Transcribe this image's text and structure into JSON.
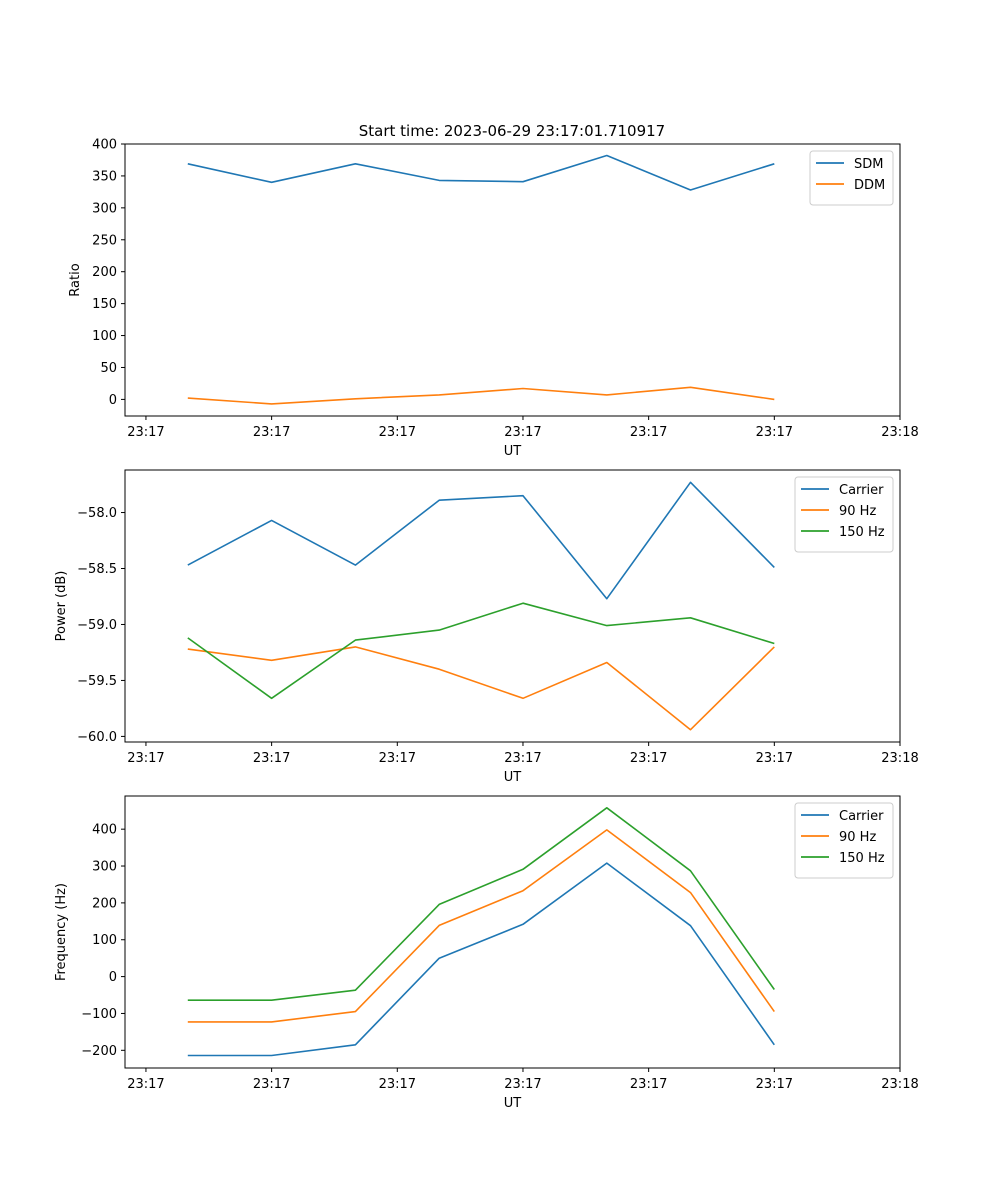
{
  "figure_title": "Start time: 2023-06-29 23:17:01.710917",
  "chart_data": [
    {
      "type": "line",
      "title": "Start time: 2023-06-29 23:17:01.710917",
      "xlabel": "UT",
      "ylabel": "Ratio",
      "xlim": [
        -0.75,
        8.5
      ],
      "ylim": [
        -26,
        400
      ],
      "x_ticks": [
        {
          "x": -0.5,
          "label": "23:17"
        },
        {
          "x": 1,
          "label": "23:17"
        },
        {
          "x": 2.5,
          "label": "23:17"
        },
        {
          "x": 4,
          "label": "23:17"
        },
        {
          "x": 5.5,
          "label": "23:17"
        },
        {
          "x": 7,
          "label": "23:17"
        },
        {
          "x": 8.5,
          "label": "23:18"
        }
      ],
      "y_ticks": [
        0,
        50,
        100,
        150,
        200,
        250,
        300,
        350,
        400
      ],
      "y_tick_labels": [
        "0",
        "50",
        "100",
        "150",
        "200",
        "250",
        "300",
        "350",
        "400"
      ],
      "x": [
        0,
        1,
        2,
        3,
        4,
        5,
        6,
        7
      ],
      "series": [
        {
          "name": "SDM",
          "color": "#1f77b4",
          "values": [
            369,
            340,
            369,
            343,
            341,
            382,
            328,
            369
          ]
        },
        {
          "name": "DDM",
          "color": "#ff7f0e",
          "values": [
            2,
            -7,
            1,
            7,
            17,
            7,
            19,
            0
          ]
        }
      ],
      "legend": "top-right",
      "grid": false
    },
    {
      "type": "line",
      "xlabel": "UT",
      "ylabel": "Power (dB)",
      "xlim": [
        -0.75,
        8.5
      ],
      "ylim": [
        -60.05,
        -57.62
      ],
      "x_ticks": [
        {
          "x": -0.5,
          "label": "23:17"
        },
        {
          "x": 1,
          "label": "23:17"
        },
        {
          "x": 2.5,
          "label": "23:17"
        },
        {
          "x": 4,
          "label": "23:17"
        },
        {
          "x": 5.5,
          "label": "23:17"
        },
        {
          "x": 7,
          "label": "23:17"
        },
        {
          "x": 8.5,
          "label": "23:18"
        }
      ],
      "y_ticks": [
        -60.0,
        -59.5,
        -59.0,
        -58.5,
        -58.0
      ],
      "y_tick_labels": [
        "−60.0",
        "−59.5",
        "−59.0",
        "−58.5",
        "−58.0"
      ],
      "x": [
        0,
        1,
        2,
        3,
        4,
        5,
        6,
        7
      ],
      "series": [
        {
          "name": "Carrier",
          "color": "#1f77b4",
          "values": [
            -58.47,
            -58.07,
            -58.47,
            -57.89,
            -57.85,
            -58.77,
            -57.73,
            -58.49
          ]
        },
        {
          "name": "90 Hz",
          "color": "#ff7f0e",
          "values": [
            -59.22,
            -59.32,
            -59.2,
            -59.4,
            -59.66,
            -59.34,
            -59.94,
            -59.2
          ]
        },
        {
          "name": "150 Hz",
          "color": "#2ca02c",
          "values": [
            -59.12,
            -59.66,
            -59.14,
            -59.05,
            -58.81,
            -59.01,
            -58.94,
            -59.17
          ]
        }
      ],
      "legend": "top-right",
      "grid": false
    },
    {
      "type": "line",
      "xlabel": "UT",
      "ylabel": "Frequency (Hz)",
      "xlim": [
        -0.75,
        8.5
      ],
      "ylim": [
        -248,
        490
      ],
      "x_ticks": [
        {
          "x": -0.5,
          "label": "23:17"
        },
        {
          "x": 1,
          "label": "23:17"
        },
        {
          "x": 2.5,
          "label": "23:17"
        },
        {
          "x": 4,
          "label": "23:17"
        },
        {
          "x": 5.5,
          "label": "23:17"
        },
        {
          "x": 7,
          "label": "23:17"
        },
        {
          "x": 8.5,
          "label": "23:18"
        }
      ],
      "y_ticks": [
        -200,
        -100,
        0,
        100,
        200,
        300,
        400
      ],
      "y_tick_labels": [
        "−200",
        "−100",
        "0",
        "100",
        "200",
        "300",
        "400"
      ],
      "x": [
        0,
        1,
        2,
        3,
        4,
        5,
        6,
        7
      ],
      "series": [
        {
          "name": "Carrier",
          "color": "#1f77b4",
          "values": [
            -214,
            -214,
            -185,
            50,
            142,
            308,
            138,
            -185
          ]
        },
        {
          "name": "90 Hz",
          "color": "#ff7f0e",
          "values": [
            -123,
            -123,
            -95,
            139,
            233,
            398,
            228,
            -95
          ]
        },
        {
          "name": "150 Hz",
          "color": "#2ca02c",
          "values": [
            -64,
            -64,
            -37,
            196,
            291,
            458,
            287,
            -35
          ]
        }
      ],
      "legend": "top-right",
      "grid": false
    }
  ]
}
